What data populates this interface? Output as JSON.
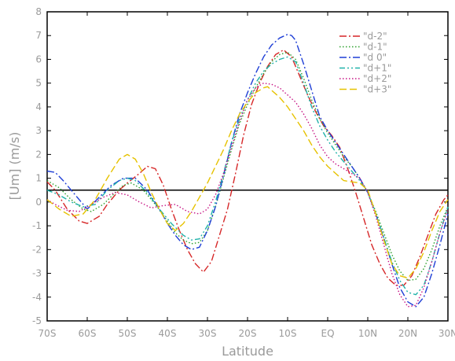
{
  "chart_data": {
    "type": "line",
    "title": "",
    "xlabel": "Latitude",
    "ylabel": "[Um] (m/s)",
    "xlim": [
      -70,
      30
    ],
    "ylim": [
      -5,
      8
    ],
    "x_ticks": [
      {
        "value": -70,
        "label": "70S"
      },
      {
        "value": -60,
        "label": "60S"
      },
      {
        "value": -50,
        "label": "50S"
      },
      {
        "value": -40,
        "label": "40S"
      },
      {
        "value": -30,
        "label": "30S"
      },
      {
        "value": -20,
        "label": "20S"
      },
      {
        "value": -10,
        "label": "10S"
      },
      {
        "value": 0,
        "label": "EQ"
      },
      {
        "value": 10,
        "label": "10N"
      },
      {
        "value": 20,
        "label": "20N"
      },
      {
        "value": 30,
        "label": "30N"
      }
    ],
    "y_ticks": [
      {
        "value": -5,
        "label": "-5"
      },
      {
        "value": -4,
        "label": "-4"
      },
      {
        "value": -3,
        "label": "-3"
      },
      {
        "value": -2,
        "label": "-2"
      },
      {
        "value": -1,
        "label": "-1"
      },
      {
        "value": 0,
        "label": "0"
      },
      {
        "value": 1,
        "label": "1"
      },
      {
        "value": 2,
        "label": "2"
      },
      {
        "value": 3,
        "label": "3"
      },
      {
        "value": 4,
        "label": "4"
      },
      {
        "value": 5,
        "label": "5"
      },
      {
        "value": 6,
        "label": "6"
      },
      {
        "value": 7,
        "label": "7"
      },
      {
        "value": 8,
        "label": "8"
      }
    ],
    "reference_line": {
      "y": 0.5,
      "color": "#000000"
    },
    "grid": false,
    "legend_position": "top-right",
    "series": [
      {
        "name": "\"d-2\"",
        "color": "#d62728",
        "dash": "dashdot",
        "x": [
          -70,
          -68,
          -65,
          -62,
          -60,
          -57,
          -55,
          -52,
          -50,
          -47,
          -45,
          -43,
          -41,
          -39,
          -37,
          -35,
          -33,
          -31,
          -29,
          -27,
          -25,
          -23,
          -21,
          -19,
          -17,
          -15,
          -13,
          -11,
          -9,
          -7,
          -5,
          -3,
          -1,
          1,
          3,
          5,
          7,
          9,
          11,
          13,
          15,
          17,
          19,
          21,
          23,
          25,
          27,
          29,
          30
        ],
        "y": [
          0.85,
          0.5,
          -0.3,
          -0.8,
          -0.9,
          -0.6,
          -0.1,
          0.5,
          0.8,
          1.2,
          1.5,
          1.4,
          0.7,
          -0.3,
          -1.2,
          -2.0,
          -2.6,
          -2.95,
          -2.5,
          -1.4,
          -0.3,
          1.2,
          2.8,
          4.1,
          5.0,
          5.7,
          6.2,
          6.4,
          6.1,
          5.3,
          4.5,
          3.8,
          3.2,
          2.8,
          2.3,
          1.4,
          0.4,
          -0.7,
          -1.8,
          -2.6,
          -3.2,
          -3.5,
          -3.5,
          -3.1,
          -2.3,
          -1.4,
          -0.5,
          0.1,
          0.3
        ]
      },
      {
        "name": "\"d-1\"",
        "color": "#2ca02c",
        "dash": "dot",
        "x": [
          -70,
          -67,
          -64,
          -61,
          -59,
          -56,
          -53,
          -51,
          -49,
          -46,
          -43,
          -40,
          -38,
          -36,
          -34,
          -32,
          -30,
          -28,
          -26,
          -24,
          -22,
          -20,
          -18,
          -16,
          -14,
          -12,
          -10,
          -8,
          -6,
          -4,
          -2,
          0,
          2,
          4,
          6,
          8,
          10,
          12,
          14,
          16,
          18,
          20,
          22,
          24,
          26,
          28,
          30
        ],
        "y": [
          0.9,
          0.6,
          0.1,
          -0.3,
          -0.4,
          -0.1,
          0.4,
          0.7,
          0.8,
          0.5,
          -0.1,
          -0.8,
          -1.3,
          -1.6,
          -1.75,
          -1.7,
          -1.2,
          -0.2,
          1.0,
          2.2,
          3.3,
          4.1,
          4.8,
          5.4,
          5.9,
          6.2,
          6.3,
          6.0,
          5.2,
          4.3,
          3.5,
          2.9,
          2.4,
          1.9,
          1.5,
          1.0,
          0.4,
          -0.4,
          -1.3,
          -2.2,
          -2.9,
          -3.3,
          -3.25,
          -2.8,
          -2.0,
          -1.0,
          -0.2
        ]
      },
      {
        "name": "\"d 0\"",
        "color": "#1f3fd6",
        "dash": "dashdot",
        "x": [
          -70,
          -68,
          -66,
          -63,
          -60,
          -57,
          -54,
          -51,
          -48,
          -45,
          -42,
          -40,
          -38,
          -36,
          -34,
          -32,
          -30,
          -28,
          -26,
          -24,
          -22,
          -20,
          -18,
          -16,
          -14,
          -12,
          -10,
          -9,
          -8,
          -6,
          -4,
          -2,
          0,
          2,
          4,
          6,
          8,
          10,
          12,
          14,
          16,
          18,
          20,
          22,
          24,
          26,
          28,
          30
        ],
        "y": [
          1.3,
          1.25,
          0.9,
          0.3,
          -0.3,
          0.2,
          0.7,
          1.0,
          1.0,
          0.5,
          -0.3,
          -0.9,
          -1.4,
          -1.8,
          -2.0,
          -1.9,
          -1.2,
          -0.2,
          1.1,
          2.5,
          3.7,
          4.6,
          5.4,
          6.1,
          6.6,
          6.9,
          7.05,
          7.0,
          6.8,
          5.8,
          4.7,
          3.6,
          3.0,
          2.5,
          2.0,
          1.5,
          1.0,
          0.4,
          -0.5,
          -1.5,
          -2.6,
          -3.6,
          -4.2,
          -4.4,
          -4.0,
          -3.0,
          -1.8,
          -0.5
        ]
      },
      {
        "name": "\"d+1\"",
        "color": "#20b2aa",
        "dash": "dashdotdot",
        "x": [
          -70,
          -67,
          -64,
          -61,
          -58,
          -55,
          -52,
          -50,
          -48,
          -45,
          -42,
          -39,
          -36,
          -34,
          -32,
          -30,
          -28,
          -26,
          -24,
          -22,
          -20,
          -18,
          -16,
          -14,
          -12,
          -10,
          -8,
          -6,
          -4,
          -2,
          0,
          2,
          4,
          6,
          8,
          10,
          12,
          14,
          16,
          18,
          20,
          22,
          24,
          26,
          28,
          30
        ],
        "y": [
          0.5,
          0.3,
          0.0,
          -0.2,
          -0.1,
          0.5,
          0.9,
          1.0,
          0.9,
          0.4,
          -0.3,
          -0.9,
          -1.4,
          -1.6,
          -1.55,
          -1.0,
          0.0,
          1.2,
          2.5,
          3.5,
          4.3,
          5.0,
          5.5,
          5.8,
          6.0,
          6.1,
          5.9,
          5.0,
          4.0,
          3.2,
          2.6,
          2.1,
          1.7,
          1.3,
          0.9,
          0.4,
          -0.5,
          -1.5,
          -2.5,
          -3.3,
          -3.8,
          -3.9,
          -3.5,
          -2.5,
          -1.3,
          -0.2
        ]
      },
      {
        "name": "\"d+2\"",
        "color": "#c71585",
        "dash": "dot",
        "x": [
          -70,
          -68,
          -65,
          -62,
          -59,
          -56,
          -53,
          -50,
          -47,
          -44,
          -41,
          -38,
          -35,
          -32,
          -30,
          -28,
          -26,
          -24,
          -22,
          -20,
          -18,
          -16,
          -14,
          -12,
          -10,
          -8,
          -6,
          -4,
          -2,
          0,
          2,
          4,
          6,
          8,
          10,
          12,
          14,
          16,
          18,
          20,
          22,
          24,
          26,
          28,
          30
        ],
        "y": [
          0.1,
          -0.1,
          -0.35,
          -0.4,
          -0.1,
          0.2,
          0.4,
          0.3,
          0.0,
          -0.25,
          -0.15,
          -0.1,
          -0.4,
          -0.5,
          -0.3,
          0.3,
          1.2,
          2.3,
          3.4,
          4.3,
          4.8,
          5.0,
          4.95,
          4.8,
          4.5,
          4.2,
          3.7,
          3.1,
          2.4,
          1.9,
          1.6,
          1.4,
          1.2,
          1.0,
          0.4,
          -0.6,
          -1.8,
          -3.0,
          -3.9,
          -4.4,
          -4.35,
          -3.6,
          -2.5,
          -1.3,
          -0.3
        ]
      },
      {
        "name": "\"d+3\"",
        "color": "#e6c200",
        "dash": "dash",
        "x": [
          -70,
          -67,
          -64,
          -61,
          -58,
          -55,
          -52,
          -50,
          -48,
          -46,
          -44,
          -42,
          -40,
          -38,
          -36,
          -34,
          -32,
          -30,
          -28,
          -26,
          -24,
          -22,
          -20,
          -18,
          -16,
          -15,
          -14,
          -12,
          -10,
          -8,
          -6,
          -4,
          -2,
          0,
          2,
          4,
          6,
          8,
          10,
          12,
          14,
          16,
          18,
          20,
          22,
          24,
          26,
          28,
          30
        ],
        "y": [
          0.1,
          -0.3,
          -0.6,
          -0.5,
          0.1,
          1.0,
          1.8,
          2.0,
          1.8,
          1.2,
          0.4,
          -0.3,
          -0.9,
          -1.2,
          -0.9,
          -0.4,
          0.2,
          0.8,
          1.5,
          2.2,
          3.0,
          3.7,
          4.2,
          4.6,
          4.8,
          4.85,
          4.7,
          4.4,
          4.0,
          3.5,
          3.0,
          2.4,
          1.9,
          1.5,
          1.2,
          0.9,
          0.85,
          0.8,
          0.5,
          -0.5,
          -1.6,
          -2.6,
          -3.1,
          -3.2,
          -2.8,
          -2.1,
          -1.2,
          -0.4,
          0.1
        ]
      }
    ]
  }
}
